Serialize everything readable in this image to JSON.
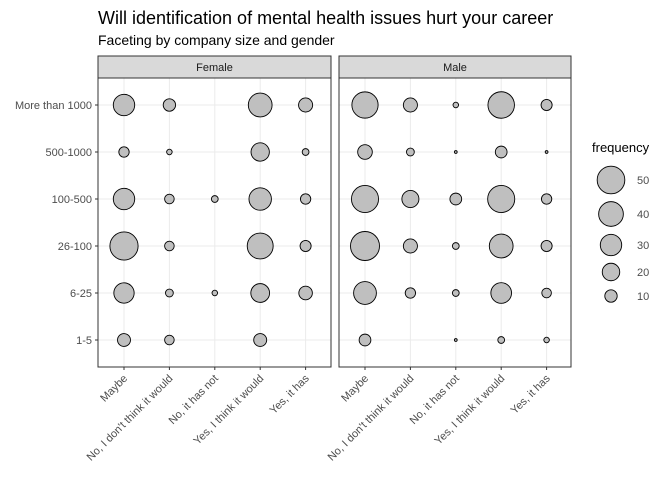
{
  "chart_data": {
    "type": "scatter",
    "title": "Will identification of mental health issues hurt your career",
    "subtitle": "Faceting by company size and gender",
    "facets": [
      "Female",
      "Male"
    ],
    "x_categories": [
      "Maybe",
      "No, I don't think it would",
      "No, it has not",
      "Yes, I think it would",
      "Yes, it has"
    ],
    "y_categories": [
      "1-5",
      "6-25",
      "26-100",
      "100-500",
      "500-1000",
      "More than 1000"
    ],
    "size_legend": {
      "title": "frequency",
      "levels": [
        50,
        40,
        30,
        20,
        10
      ]
    },
    "series": [
      {
        "name": "Female",
        "rows": [
          {
            "size": "More than 1000",
            "values": [
              30,
              10,
              null,
              37,
              13
            ]
          },
          {
            "size": "500-1000",
            "values": [
              7,
              2,
              null,
              22,
              3
            ]
          },
          {
            "size": "100-500",
            "values": [
              30,
              6,
              3,
              33,
              7
            ]
          },
          {
            "size": "26-100",
            "values": [
              52,
              6,
              null,
              44,
              8
            ]
          },
          {
            "size": "6-25",
            "values": [
              27,
              4,
              2,
              23,
              12
            ]
          },
          {
            "size": "1-5",
            "values": [
              11,
              6,
              null,
              11,
              null
            ]
          }
        ]
      },
      {
        "name": "Male",
        "rows": [
          {
            "size": "More than 1000",
            "values": [
              45,
              13,
              2,
              46,
              8
            ]
          },
          {
            "size": "500-1000",
            "values": [
              14,
              4,
              0.5,
              9,
              0.5
            ]
          },
          {
            "size": "100-500",
            "values": [
              48,
              19,
              9,
              48,
              7
            ]
          },
          {
            "size": "26-100",
            "values": [
              55,
              13,
              3,
              37,
              8
            ]
          },
          {
            "size": "6-25",
            "values": [
              34,
              7,
              3,
              28,
              6
            ]
          },
          {
            "size": "1-5",
            "values": [
              9,
              null,
              0.5,
              3,
              2
            ]
          }
        ]
      }
    ]
  }
}
